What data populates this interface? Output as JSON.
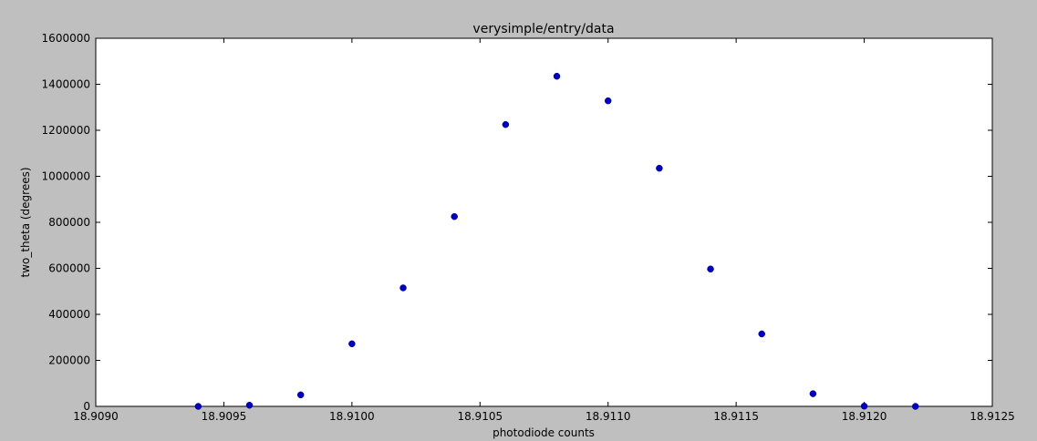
{
  "chart_data": {
    "type": "scatter",
    "title": "verysimple/entry/data",
    "xlabel": "photodiode counts",
    "ylabel": "two_theta (degrees)",
    "xlim": [
      18.909,
      18.9125
    ],
    "ylim": [
      0,
      1600000
    ],
    "xticks": [
      "18.9090",
      "18.9095",
      "18.9100",
      "18.9105",
      "18.9110",
      "18.9115",
      "18.9120",
      "18.9125"
    ],
    "yticks": [
      "0",
      "200000",
      "400000",
      "600000",
      "800000",
      "1000000",
      "1200000",
      "1400000",
      "1600000"
    ],
    "grid": false,
    "marker_color": "#0000bf",
    "series": [
      {
        "x": [
          18.9094,
          18.9096,
          18.9098,
          18.91,
          18.9102,
          18.9104,
          18.9106,
          18.9108,
          18.911,
          18.9112,
          18.9114,
          18.9116,
          18.9118,
          18.912,
          18.9122
        ],
        "y": [
          0,
          5000,
          50000,
          272000,
          515000,
          825000,
          1225000,
          1435000,
          1328000,
          1035000,
          597000,
          315000,
          55000,
          1000,
          0
        ]
      }
    ]
  }
}
